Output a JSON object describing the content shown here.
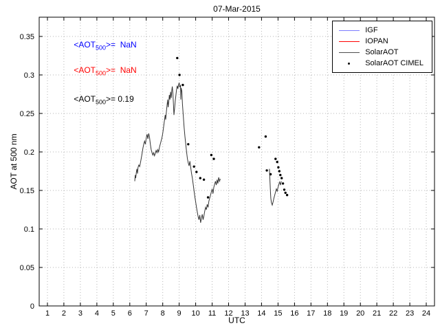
{
  "chart_data": {
    "type": "line",
    "title": "07-Mar-2015",
    "xlabel": "UTC",
    "ylabel": "AOT at 500 nm",
    "xlim": [
      0.5,
      24.5
    ],
    "ylim": [
      0,
      0.375
    ],
    "grid": "dotted",
    "x_ticks": [
      1,
      2,
      3,
      4,
      5,
      6,
      7,
      8,
      9,
      10,
      11,
      12,
      13,
      14,
      15,
      16,
      17,
      18,
      19,
      20,
      21,
      22,
      23,
      24
    ],
    "y_ticks": [
      {
        "v": 0,
        "label": "0"
      },
      {
        "v": 0.05,
        "label": "0.05"
      },
      {
        "v": 0.1,
        "label": "0.1"
      },
      {
        "v": 0.15,
        "label": "0.15"
      },
      {
        "v": 0.2,
        "label": "0.2"
      },
      {
        "v": 0.25,
        "label": "0.25"
      },
      {
        "v": 0.3,
        "label": "0.3"
      },
      {
        "v": 0.35,
        "label": "0.35"
      }
    ],
    "legend": {
      "position": "top-right",
      "entries": [
        {
          "label": "IGF",
          "color": "#7b7bff",
          "type": "line"
        },
        {
          "label": "IOPAN",
          "color": "#ff0000",
          "type": "line"
        },
        {
          "label": "SolarAOT",
          "color": "#4d4d4d",
          "type": "line"
        },
        {
          "label": "SolarAOT CIMEL",
          "color": "#000000",
          "type": "marker"
        }
      ]
    },
    "annotations": [
      {
        "pre": "<AOT",
        "sub": "500",
        "post": ">=  NaN",
        "color": "#0000ff",
        "x": 2.6,
        "y": 0.338
      },
      {
        "pre": "<AOT",
        "sub": "500",
        "post": ">=  NaN",
        "color": "#ff0000",
        "x": 2.6,
        "y": 0.305
      },
      {
        "pre": "<AOT",
        "sub": "500",
        "post": ">= 0.19",
        "color": "#000000",
        "x": 2.6,
        "y": 0.268
      }
    ],
    "series": [
      {
        "name": "SolarAOT",
        "type": "line",
        "color": "#333333",
        "segments": [
          [
            [
              6.3,
              0.162
            ],
            [
              6.33,
              0.17
            ],
            [
              6.36,
              0.166
            ],
            [
              6.4,
              0.174
            ],
            [
              6.43,
              0.178
            ],
            [
              6.47,
              0.172
            ],
            [
              6.5,
              0.18
            ],
            [
              6.55,
              0.183
            ],
            [
              6.6,
              0.181
            ],
            [
              6.65,
              0.186
            ],
            [
              6.7,
              0.192
            ],
            [
              6.75,
              0.198
            ],
            [
              6.8,
              0.205
            ],
            [
              6.85,
              0.21
            ],
            [
              6.9,
              0.214
            ],
            [
              6.95,
              0.21
            ],
            [
              7.0,
              0.218
            ],
            [
              7.05,
              0.223
            ],
            [
              7.1,
              0.217
            ],
            [
              7.15,
              0.224
            ],
            [
              7.2,
              0.219
            ],
            [
              7.25,
              0.21
            ],
            [
              7.3,
              0.203
            ],
            [
              7.35,
              0.199
            ],
            [
              7.4,
              0.196
            ],
            [
              7.45,
              0.199
            ],
            [
              7.5,
              0.195
            ],
            [
              7.55,
              0.198
            ],
            [
              7.6,
              0.202
            ],
            [
              7.65,
              0.199
            ],
            [
              7.7,
              0.203
            ],
            [
              7.75,
              0.2
            ],
            [
              7.8,
              0.206
            ],
            [
              7.85,
              0.21
            ],
            [
              7.9,
              0.214
            ],
            [
              7.95,
              0.218
            ],
            [
              8.0,
              0.224
            ],
            [
              8.05,
              0.232
            ],
            [
              8.1,
              0.24
            ],
            [
              8.15,
              0.248
            ],
            [
              8.18,
              0.242
            ],
            [
              8.22,
              0.252
            ],
            [
              8.26,
              0.26
            ],
            [
              8.3,
              0.268
            ],
            [
              8.33,
              0.258
            ],
            [
              8.37,
              0.266
            ],
            [
              8.4,
              0.274
            ],
            [
              8.44,
              0.268
            ],
            [
              8.48,
              0.278
            ],
            [
              8.52,
              0.27
            ],
            [
              8.55,
              0.28
            ],
            [
              8.58,
              0.285
            ],
            [
              8.62,
              0.276
            ],
            [
              8.65,
              0.262
            ],
            [
              8.68,
              0.248
            ],
            [
              8.72,
              0.256
            ],
            [
              8.76,
              0.266
            ],
            [
              8.8,
              0.274
            ],
            [
              8.84,
              0.281
            ],
            [
              8.88,
              0.286
            ],
            [
              8.92,
              0.282
            ],
            [
              8.96,
              0.287
            ],
            [
              9.0,
              0.29
            ],
            [
              9.04,
              0.284
            ],
            [
              9.08,
              0.287
            ],
            [
              9.1,
              0.268
            ],
            [
              9.12,
              0.283
            ],
            [
              9.16,
              0.279
            ],
            [
              9.2,
              0.262
            ],
            [
              9.25,
              0.247
            ],
            [
              9.3,
              0.232
            ],
            [
              9.35,
              0.22
            ],
            [
              9.4,
              0.21
            ],
            [
              9.45,
              0.2
            ],
            [
              9.5,
              0.191
            ],
            [
              9.55,
              0.186
            ],
            [
              9.6,
              0.182
            ],
            [
              9.65,
              0.188
            ],
            [
              9.7,
              0.18
            ],
            [
              9.75,
              0.172
            ],
            [
              9.8,
              0.166
            ],
            [
              9.85,
              0.158
            ],
            [
              9.9,
              0.15
            ],
            [
              9.95,
              0.142
            ],
            [
              10.0,
              0.135
            ],
            [
              10.05,
              0.128
            ],
            [
              10.1,
              0.122
            ],
            [
              10.15,
              0.116
            ],
            [
              10.2,
              0.112
            ],
            [
              10.25,
              0.118
            ],
            [
              10.3,
              0.108
            ],
            [
              10.35,
              0.114
            ],
            [
              10.4,
              0.119
            ],
            [
              10.45,
              0.112
            ],
            [
              10.5,
              0.117
            ],
            [
              10.55,
              0.123
            ],
            [
              10.6,
              0.128
            ],
            [
              10.65,
              0.125
            ],
            [
              10.7,
              0.132
            ],
            [
              10.75,
              0.128
            ],
            [
              10.8,
              0.136
            ],
            [
              10.85,
              0.14
            ],
            [
              10.9,
              0.144
            ],
            [
              10.95,
              0.148
            ],
            [
              11.0,
              0.152
            ],
            [
              11.05,
              0.146
            ],
            [
              11.1,
              0.154
            ],
            [
              11.15,
              0.158
            ],
            [
              11.2,
              0.162
            ],
            [
              11.25,
              0.157
            ],
            [
              11.3,
              0.164
            ],
            [
              11.35,
              0.159
            ],
            [
              11.4,
              0.167
            ],
            [
              11.45,
              0.162
            ],
            [
              11.5,
              0.165
            ]
          ],
          [
            [
              14.48,
              0.178
            ],
            [
              14.5,
              0.168
            ],
            [
              14.52,
              0.158
            ],
            [
              14.54,
              0.148
            ],
            [
              14.56,
              0.14
            ],
            [
              14.6,
              0.134
            ],
            [
              14.65,
              0.131
            ],
            [
              14.7,
              0.135
            ],
            [
              14.75,
              0.14
            ],
            [
              14.8,
              0.144
            ],
            [
              14.85,
              0.148
            ],
            [
              14.9,
              0.152
            ],
            [
              14.95,
              0.149
            ],
            [
              15.0,
              0.154
            ],
            [
              15.05,
              0.158
            ],
            [
              15.1,
              0.161
            ],
            [
              15.15,
              0.157
            ],
            [
              15.2,
              0.162
            ]
          ]
        ]
      },
      {
        "name": "SolarAOT CIMEL",
        "type": "scatter",
        "color": "#000000",
        "points": [
          [
            8.88,
            0.322
          ],
          [
            9.02,
            0.3
          ],
          [
            9.22,
            0.287
          ],
          [
            9.55,
            0.21
          ],
          [
            9.9,
            0.181
          ],
          [
            10.05,
            0.174
          ],
          [
            10.28,
            0.166
          ],
          [
            10.5,
            0.164
          ],
          [
            10.75,
            0.141
          ],
          [
            10.95,
            0.196
          ],
          [
            11.1,
            0.191
          ],
          [
            13.85,
            0.206
          ],
          [
            14.25,
            0.22
          ],
          [
            14.32,
            0.176
          ],
          [
            14.55,
            0.171
          ],
          [
            14.85,
            0.191
          ],
          [
            14.95,
            0.187
          ],
          [
            15.02,
            0.18
          ],
          [
            15.08,
            0.175
          ],
          [
            15.14,
            0.17
          ],
          [
            15.22,
            0.166
          ],
          [
            15.3,
            0.159
          ],
          [
            15.38,
            0.151
          ],
          [
            15.45,
            0.147
          ],
          [
            15.55,
            0.144
          ]
        ]
      }
    ]
  }
}
